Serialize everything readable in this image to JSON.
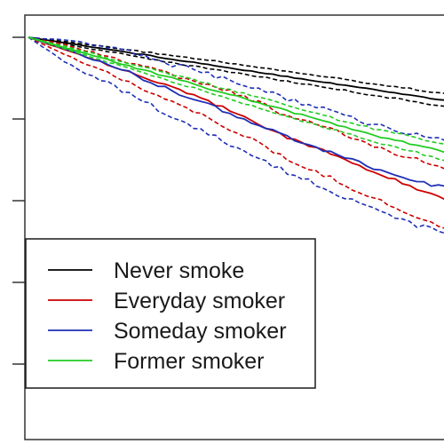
{
  "chart_data": {
    "type": "line",
    "title": "",
    "xlabel": "",
    "ylabel": "",
    "grid": false,
    "legend_position": "bottom-left",
    "xlim": [
      0,
      1
    ],
    "ylim": [
      0.5,
      1.0
    ],
    "yticks": [
      1.0,
      0.9,
      0.8,
      0.7,
      0.6
    ],
    "y_tick_labels_visible": false,
    "x": [
      0,
      0.1,
      0.2,
      0.3,
      0.4,
      0.5,
      0.6,
      0.7,
      0.8,
      0.9,
      1.0
    ],
    "series": [
      {
        "name": "Never smoke",
        "color": "#000000",
        "values": [
          1.0,
          0.992,
          0.984,
          0.976,
          0.968,
          0.96,
          0.952,
          0.944,
          0.936,
          0.928,
          0.92
        ],
        "ci_lower": [
          1.0,
          0.99,
          0.981,
          0.972,
          0.963,
          0.955,
          0.946,
          0.938,
          0.929,
          0.921,
          0.912
        ],
        "ci_upper": [
          1.0,
          0.994,
          0.987,
          0.98,
          0.973,
          0.966,
          0.958,
          0.951,
          0.943,
          0.936,
          0.928
        ]
      },
      {
        "name": "Everyday smoker",
        "color": "#cc0000",
        "values": [
          1.0,
          0.982,
          0.964,
          0.944,
          0.925,
          0.904,
          0.877,
          0.858,
          0.835,
          0.815,
          0.796
        ],
        "ci_lower": [
          1.0,
          0.975,
          0.953,
          0.929,
          0.905,
          0.88,
          0.85,
          0.828,
          0.803,
          0.78,
          0.758
        ],
        "ci_upper": [
          1.0,
          0.989,
          0.975,
          0.959,
          0.944,
          0.928,
          0.904,
          0.887,
          0.867,
          0.85,
          0.834
        ]
      },
      {
        "name": "Someday smoker",
        "color": "#1f2fb5",
        "values": [
          1.0,
          0.983,
          0.964,
          0.942,
          0.921,
          0.9,
          0.878,
          0.86,
          0.84,
          0.824,
          0.812
        ],
        "ci_lower": [
          1.0,
          0.965,
          0.94,
          0.912,
          0.886,
          0.86,
          0.835,
          0.812,
          0.79,
          0.77,
          0.756
        ],
        "ci_upper": [
          1.0,
          0.996,
          0.987,
          0.972,
          0.957,
          0.942,
          0.924,
          0.91,
          0.893,
          0.88,
          0.87
        ]
      },
      {
        "name": "Former smoker",
        "color": "#22cc22",
        "values": [
          1.0,
          0.985,
          0.97,
          0.955,
          0.94,
          0.925,
          0.91,
          0.895,
          0.88,
          0.868,
          0.855
        ],
        "ci_lower": [
          1.0,
          0.983,
          0.967,
          0.951,
          0.935,
          0.919,
          0.903,
          0.888,
          0.872,
          0.859,
          0.845
        ],
        "ci_upper": [
          1.0,
          0.987,
          0.973,
          0.959,
          0.945,
          0.931,
          0.917,
          0.902,
          0.888,
          0.877,
          0.865
        ]
      }
    ]
  }
}
